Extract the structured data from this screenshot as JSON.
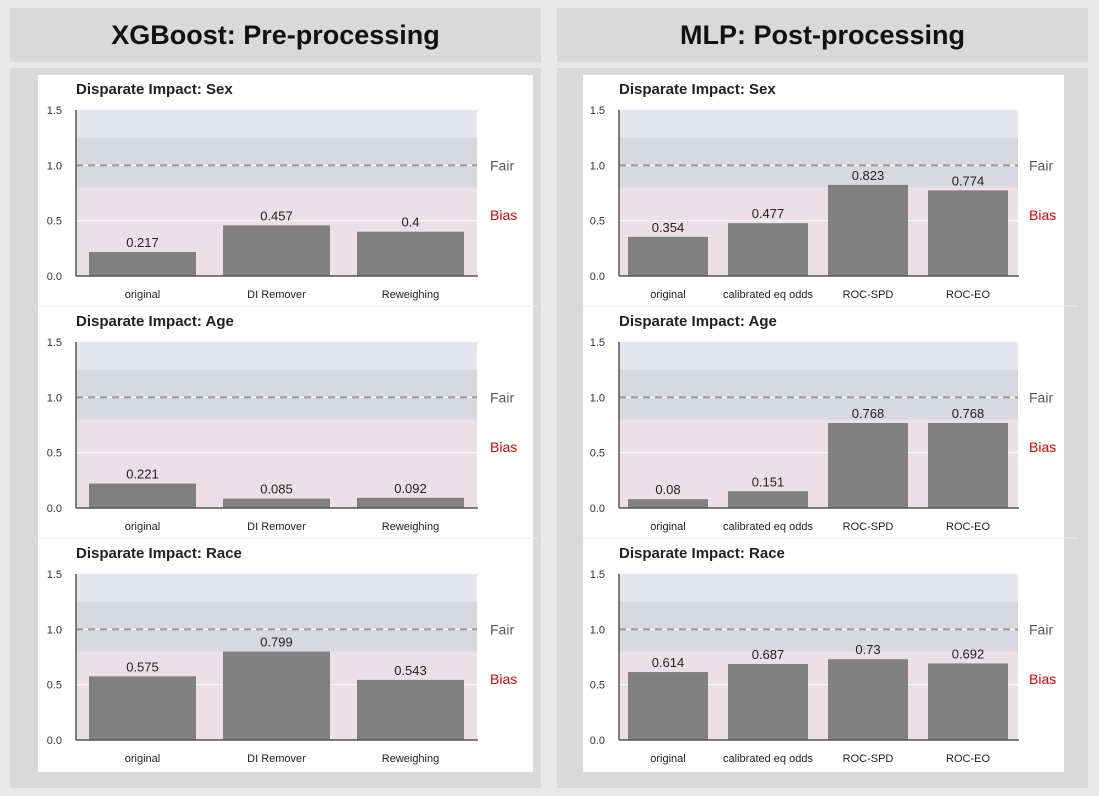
{
  "columns": [
    {
      "title": "XGBoost: Pre-processing"
    },
    {
      "title": "MLP: Post-processing"
    }
  ],
  "band_labels": {
    "fair": "Fair",
    "bias": "Bias",
    "fair_color": "#555555",
    "bias_color": "#e00000"
  },
  "colors": {
    "bar": "#808080",
    "fair_band": "#d8d8df",
    "bias_band": "#ecdfe5",
    "top_band": "#e6e6f0",
    "dashed_line": "#999999"
  },
  "chart_data": [
    {
      "type": "bar",
      "title": "Disparate Impact: Sex",
      "categories": [
        "original",
        "DI Remover",
        "Reweighing"
      ],
      "values": [
        0.217,
        0.457,
        0.4
      ],
      "value_labels": [
        "0.217",
        "0.457",
        "0.4"
      ],
      "ylim": [
        0,
        1.5
      ],
      "yticks": [
        "0.0",
        "0.5",
        "1.0",
        "1.5"
      ],
      "fair_line": 1.0
    },
    {
      "type": "bar",
      "title": "Disparate Impact: Age",
      "categories": [
        "original",
        "DI Remover",
        "Reweighing"
      ],
      "values": [
        0.221,
        0.085,
        0.092
      ],
      "value_labels": [
        "0.221",
        "0.085",
        "0.092"
      ],
      "ylim": [
        0,
        1.5
      ],
      "yticks": [
        "0.0",
        "0.5",
        "1.0",
        "1.5"
      ],
      "fair_line": 1.0
    },
    {
      "type": "bar",
      "title": "Disparate Impact: Race",
      "categories": [
        "original",
        "DI Remover",
        "Reweighing"
      ],
      "values": [
        0.575,
        0.799,
        0.543
      ],
      "value_labels": [
        "0.575",
        "0.799",
        "0.543"
      ],
      "ylim": [
        0,
        1.5
      ],
      "yticks": [
        "0.0",
        "0.5",
        "1.0",
        "1.5"
      ],
      "fair_line": 1.0
    },
    {
      "type": "bar",
      "title": "Disparate Impact: Sex",
      "categories": [
        "original",
        "calibrated eq odds",
        "ROC-SPD",
        "ROC-EO"
      ],
      "values": [
        0.354,
        0.477,
        0.823,
        0.774
      ],
      "value_labels": [
        "0.354",
        "0.477",
        "0.823",
        "0.774"
      ],
      "ylim": [
        0,
        1.5
      ],
      "yticks": [
        "0.0",
        "0.5",
        "1.0",
        "1.5"
      ],
      "fair_line": 1.0
    },
    {
      "type": "bar",
      "title": "Disparate Impact: Age",
      "categories": [
        "original",
        "calibrated eq odds",
        "ROC-SPD",
        "ROC-EO"
      ],
      "values": [
        0.08,
        0.151,
        0.768,
        0.768
      ],
      "value_labels": [
        "0.08",
        "0.151",
        "0.768",
        "0.768"
      ],
      "ylim": [
        0,
        1.5
      ],
      "yticks": [
        "0.0",
        "0.5",
        "1.0",
        "1.5"
      ],
      "fair_line": 1.0
    },
    {
      "type": "bar",
      "title": "Disparate Impact: Race",
      "categories": [
        "original",
        "calibrated eq odds",
        "ROC-SPD",
        "ROC-EO"
      ],
      "values": [
        0.614,
        0.687,
        0.73,
        0.692
      ],
      "value_labels": [
        "0.614",
        "0.687",
        "0.73",
        "0.692"
      ],
      "ylim": [
        0,
        1.5
      ],
      "yticks": [
        "0.0",
        "0.5",
        "1.0",
        "1.5"
      ],
      "fair_line": 1.0
    }
  ]
}
